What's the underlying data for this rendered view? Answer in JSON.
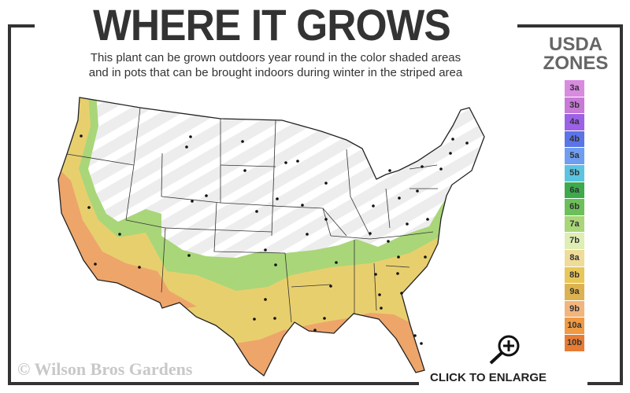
{
  "header": {
    "title": "WHERE IT GROWS",
    "subtitle_line1": "This plant can be grown outdoors year round in the color shaded areas",
    "subtitle_line2": "and in pots that can be brought indoors during winter in the striped area"
  },
  "legend": {
    "title_line1": "USDA",
    "title_line2": "ZONES",
    "zones": [
      {
        "label": "3a",
        "color": "#d98be0"
      },
      {
        "label": "3b",
        "color": "#c77ad6"
      },
      {
        "label": "4a",
        "color": "#9b62e8"
      },
      {
        "label": "4b",
        "color": "#5b74e6"
      },
      {
        "label": "5a",
        "color": "#6f9ef0"
      },
      {
        "label": "5b",
        "color": "#5cc4e0"
      },
      {
        "label": "6a",
        "color": "#3daa4c"
      },
      {
        "label": "6b",
        "color": "#6cc05a"
      },
      {
        "label": "7a",
        "color": "#a9d679"
      },
      {
        "label": "7b",
        "color": "#dfeeb4"
      },
      {
        "label": "8a",
        "color": "#eedc98"
      },
      {
        "label": "8b",
        "color": "#e8c75a"
      },
      {
        "label": "9a",
        "color": "#ddb250"
      },
      {
        "label": "9b",
        "color": "#f2b57e"
      },
      {
        "label": "10a",
        "color": "#ef9a45"
      },
      {
        "label": "10b",
        "color": "#e77c34"
      }
    ]
  },
  "footer": {
    "copyright": "© Wilson Bros Gardens",
    "enlarge_label": "CLICK TO ENLARGE",
    "enlarge_icon": "zoom-in-magnifier-icon"
  }
}
